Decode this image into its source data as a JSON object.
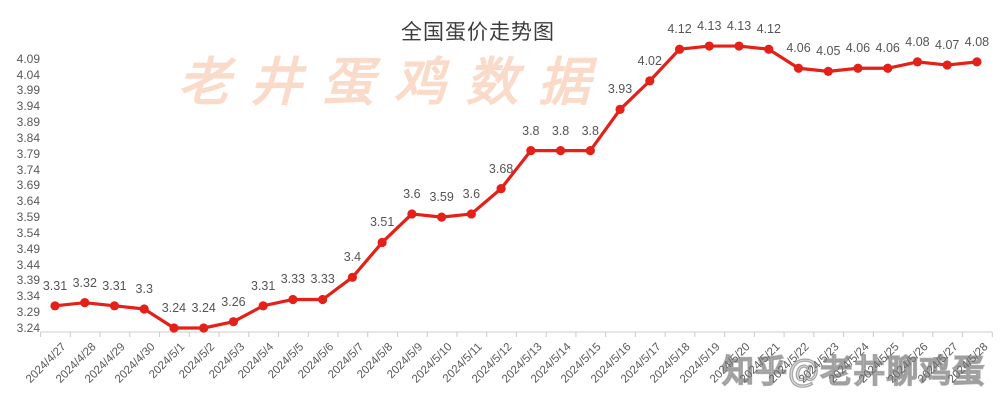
{
  "page": {
    "background": "#ffffff"
  },
  "chart_data": {
    "type": "line",
    "title": "全国蛋价走势图",
    "xlabel": "",
    "ylabel": "",
    "legend": "none",
    "grid": false,
    "ylim": [
      3.24,
      4.13
    ],
    "y_axis_ticks": [
      "4.09",
      "4.04",
      "3.99",
      "3.94",
      "3.89",
      "3.84",
      "3.79",
      "3.74",
      "3.69",
      "3.64",
      "3.59",
      "3.54",
      "3.49",
      "3.44",
      "3.39",
      "3.34",
      "3.29",
      "3.24"
    ],
    "x": [
      "2024/4/27",
      "2024/4/28",
      "2024/4/29",
      "2024/4/30",
      "2024/5/1",
      "2024/5/2",
      "2024/5/3",
      "2024/5/4",
      "2024/5/5",
      "2024/5/6",
      "2024/5/7",
      "2024/5/8",
      "2024/5/9",
      "2024/5/10",
      "2024/5/11",
      "2024/5/12",
      "2024/5/13",
      "2024/5/14",
      "2024/5/15",
      "2024/5/16",
      "2024/5/17",
      "2024/5/18",
      "2024/5/19",
      "2024/5/20",
      "2024/5/21",
      "2024/5/22",
      "2024/5/23",
      "2024/5/24",
      "2024/5/25",
      "2024/5/26",
      "2024/5/27",
      "2024/5/28"
    ],
    "series": [
      {
        "name": "全国蛋价",
        "values": [
          3.31,
          3.32,
          3.31,
          3.3,
          3.24,
          3.24,
          3.26,
          3.31,
          3.33,
          3.33,
          3.4,
          3.51,
          3.6,
          3.59,
          3.6,
          3.68,
          3.8,
          3.8,
          3.8,
          3.93,
          4.02,
          4.12,
          4.13,
          4.13,
          4.12,
          4.06,
          4.05,
          4.06,
          4.06,
          4.08,
          4.07,
          4.08
        ],
        "point_labels": [
          "3.31",
          "3.32",
          "3.31",
          "3.3",
          "3.24",
          "3.24",
          "3.26",
          "3.31",
          "3.33",
          "3.33",
          "3.4",
          "3.51",
          "3.6",
          "3.59",
          "3.6",
          "3.68",
          "3.8",
          "3.8",
          "3.8",
          "3.93",
          "4.02",
          "4.12",
          "4.13",
          "4.13",
          "4.12",
          "4.06",
          "4.05",
          "4.06",
          "4.06",
          "4.08",
          "4.07",
          "4.08"
        ],
        "color": "#e32119"
      }
    ]
  },
  "watermarks": {
    "center": "老井蛋鸡数据",
    "bottom_right": "知乎@老井聊鸡蛋"
  },
  "colors": {
    "series_red": "#e32119",
    "label_gray": "#595959",
    "axis_line": "#d6d6d6",
    "tick_mark": "#c9c9c9",
    "title_gray": "#3d3d3d",
    "watermark_peach": "#f7bd9c"
  }
}
